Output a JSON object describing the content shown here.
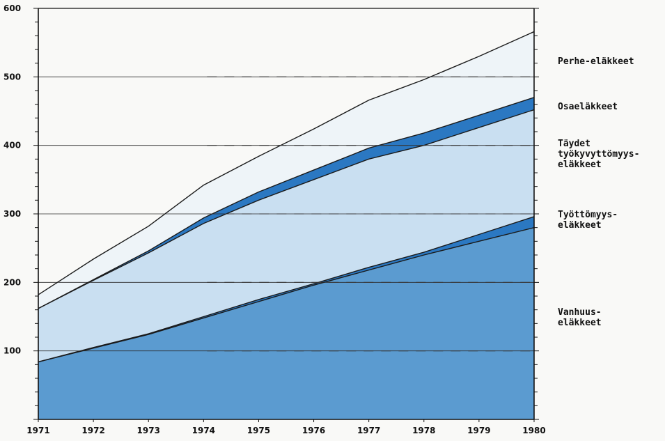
{
  "chart_data": {
    "type": "area",
    "stacked": true,
    "x": [
      "1971",
      "1972",
      "1973",
      "1974",
      "1975",
      "1976",
      "1977",
      "1978",
      "1979",
      "1980"
    ],
    "ylim": [
      0,
      600
    ],
    "yticks": [
      "100",
      "200",
      "300",
      "400",
      "500",
      "600"
    ],
    "grid": "horizontal solid and dashed lines",
    "legend_placement": "right",
    "series": [
      {
        "name": "Vanhuus-eläkkeet",
        "label_lines": [
          "Vanhuus-",
          "eläkkeet"
        ],
        "values": [
          84,
          104,
          124,
          148,
          172,
          196,
          218,
          240,
          260,
          280
        ],
        "color": "#5b9bd0"
      },
      {
        "name": "Työttömyys-eläkkeet",
        "label_lines": [
          "Työttömyys-",
          "eläkkeet"
        ],
        "values": [
          0,
          1,
          1,
          2,
          3,
          2,
          4,
          4,
          10,
          16
        ],
        "color": "#2b78c2"
      },
      {
        "name": "Täydet työkyvyttömyys-eläkkeet",
        "label_lines": [
          "Täydet",
          "työkyvyttömyys-",
          "eläkkeet"
        ],
        "values": [
          78,
          98,
          118,
          136,
          145,
          152,
          158,
          156,
          156,
          156
        ],
        "color": "#c9dff1"
      },
      {
        "name": "Osaeläkkeet",
        "label_lines": [
          "Osaeläkkeet"
        ],
        "values": [
          0,
          1,
          3,
          8,
          12,
          14,
          16,
          18,
          18,
          18
        ],
        "color": "#2b78c2"
      },
      {
        "name": "Perhe-eläkkeet",
        "label_lines": [
          "Perhe-eläkkeet"
        ],
        "values": [
          20,
          30,
          36,
          48,
          52,
          60,
          70,
          78,
          86,
          96
        ],
        "color": "#eef4f8"
      }
    ]
  }
}
